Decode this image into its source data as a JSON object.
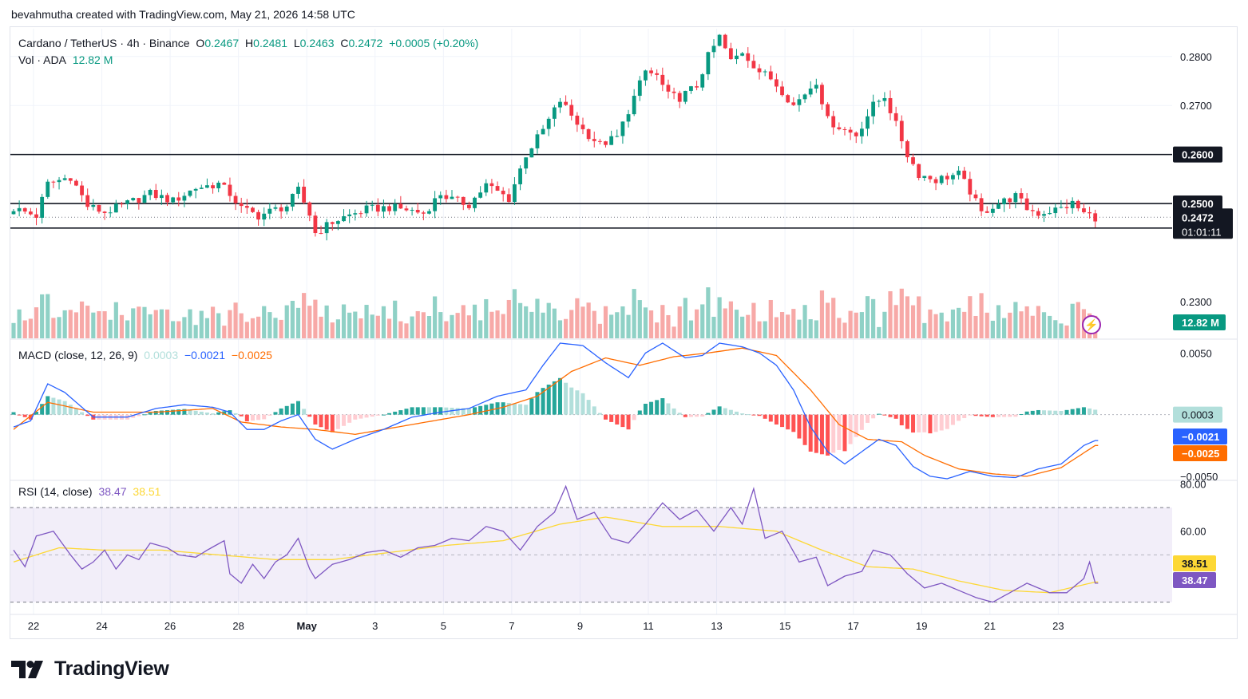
{
  "caption": "bevahmutha created with TradingView.com, May 21, 2026 14:58 UTC",
  "header": {
    "symbol": "Cardano / TetherUS · 4h · Binance",
    "o_label": "O",
    "o_value": "0.2467",
    "h_label": "H",
    "h_value": "0.2481",
    "l_label": "L",
    "l_value": "0.2463",
    "c_label": "C",
    "c_value": "0.2472",
    "change": "+0.0005 (+0.20%)"
  },
  "volume_legend": {
    "label": "Vol · ADA",
    "value": "12.82 M"
  },
  "macd_legend": {
    "label": "MACD (close, 12, 26, 9)",
    "hist": "0.0003",
    "macd": "−0.0021",
    "signal": "−0.0025"
  },
  "rsi_legend": {
    "label": "RSI (14, close)",
    "rsi": "38.47",
    "ma": "38.51"
  },
  "brand": {
    "name": "TradingView",
    "icon": "tradingview-logo-icon"
  },
  "colors": {
    "up": "#089981",
    "down": "#f23645",
    "vol_up": "#8fd1c6",
    "vol_down": "#f7a9a7",
    "macd": "#2962ff",
    "signal": "#ff6d00",
    "rsi": "#7e57c2",
    "rsi_ma": "#fdd835"
  },
  "chart_data": [
    {
      "type": "candlestick",
      "title": "Cardano / TetherUS · 4h · Binance",
      "price_ticks": [
        "0.2800",
        "0.2700",
        "0.2300"
      ],
      "price_range": [
        0.2378,
        0.2855
      ],
      "horizontal_levels": [
        "0.2600",
        "0.2500",
        "0.2450"
      ],
      "last_price_label": "0.2472",
      "countdown": "01:01:11",
      "volume_label": "12.82 M",
      "x_ticks": [
        "22",
        "24",
        "26",
        "28",
        "May",
        "3",
        "5",
        "7",
        "9",
        "11",
        "13",
        "15",
        "17",
        "19",
        "21",
        "23"
      ],
      "close_path": [
        [
          0,
          0.249
        ],
        [
          4,
          0.2475
        ],
        [
          6,
          0.254
        ],
        [
          10,
          0.2555
        ],
        [
          13,
          0.2495
        ],
        [
          16,
          0.2482
        ],
        [
          20,
          0.25
        ],
        [
          24,
          0.252
        ],
        [
          28,
          0.2505
        ],
        [
          32,
          0.2532
        ],
        [
          36,
          0.254
        ],
        [
          38,
          0.252
        ],
        [
          40,
          0.249
        ],
        [
          43,
          0.2475
        ],
        [
          46,
          0.2488
        ],
        [
          48,
          0.2495
        ],
        [
          50,
          0.2527
        ],
        [
          52,
          0.2478
        ],
        [
          53,
          0.244
        ],
        [
          56,
          0.2462
        ],
        [
          58,
          0.2472
        ],
        [
          62,
          0.2488
        ],
        [
          66,
          0.2492
        ],
        [
          69,
          0.2488
        ],
        [
          72,
          0.248
        ],
        [
          75,
          0.252
        ],
        [
          77,
          0.2508
        ],
        [
          80,
          0.2498
        ],
        [
          83,
          0.2538
        ],
        [
          87,
          0.251
        ],
        [
          90,
          0.26
        ],
        [
          93,
          0.265
        ],
        [
          96,
          0.271
        ],
        [
          98,
          0.268
        ],
        [
          100,
          0.265
        ],
        [
          103,
          0.262
        ],
        [
          106,
          0.2635
        ],
        [
          108,
          0.269
        ],
        [
          111,
          0.277
        ],
        [
          113,
          0.276
        ],
        [
          115,
          0.272
        ],
        [
          117,
          0.2716
        ],
        [
          120,
          0.274
        ],
        [
          122,
          0.28
        ],
        [
          124,
          0.284
        ],
        [
          126,
          0.279
        ],
        [
          128,
          0.281
        ],
        [
          131,
          0.277
        ],
        [
          133,
          0.2755
        ],
        [
          135,
          0.273
        ],
        [
          137,
          0.27
        ],
        [
          139,
          0.2725
        ],
        [
          141,
          0.275
        ],
        [
          143,
          0.267
        ],
        [
          146,
          0.265
        ],
        [
          148,
          0.264
        ],
        [
          151,
          0.27
        ],
        [
          153,
          0.272
        ],
        [
          155,
          0.266
        ],
        [
          157,
          0.26
        ],
        [
          159,
          0.256
        ],
        [
          162,
          0.2548
        ],
        [
          164,
          0.2555
        ],
        [
          166,
          0.256
        ],
        [
          168,
          0.2525
        ],
        [
          170,
          0.248
        ],
        [
          172,
          0.2495
        ],
        [
          174,
          0.2505
        ],
        [
          176,
          0.2515
        ],
        [
          178,
          0.249
        ],
        [
          180,
          0.248
        ],
        [
          182,
          0.2485
        ],
        [
          184,
          0.249
        ],
        [
          186,
          0.25
        ],
        [
          188,
          0.248
        ],
        [
          190,
          0.2472
        ]
      ]
    },
    {
      "type": "line",
      "title": "MACD (close, 12, 26, 9)",
      "y_ticks": [
        "0.0050",
        "−0.0050"
      ],
      "y_range": [
        -0.0052,
        0.0058
      ],
      "zero_label": "0.0003",
      "series": [
        {
          "name": "MACD",
          "values": [
            [
              0,
              -0.001
            ],
            [
              3,
              -0.0005
            ],
            [
              6,
              0.0025
            ],
            [
              9,
              0.0018
            ],
            [
              14,
              -0.0002
            ],
            [
              20,
              -0.0002
            ],
            [
              25,
              0.0005
            ],
            [
              30,
              0.0008
            ],
            [
              35,
              0.0006
            ],
            [
              38,
              0.0002
            ],
            [
              41,
              -0.0012
            ],
            [
              44,
              -0.0012
            ],
            [
              47,
              -0.0005
            ],
            [
              50,
              0.0
            ],
            [
              53,
              -0.002
            ],
            [
              56,
              -0.0028
            ],
            [
              60,
              -0.002
            ],
            [
              65,
              -0.0012
            ],
            [
              70,
              -0.0002
            ],
            [
              75,
              0.0002
            ],
            [
              80,
              0.0005
            ],
            [
              85,
              0.0015
            ],
            [
              90,
              0.002
            ],
            [
              93,
              0.004
            ],
            [
              96,
              0.0058
            ],
            [
              100,
              0.0056
            ],
            [
              104,
              0.0042
            ],
            [
              108,
              0.003
            ],
            [
              111,
              0.005
            ],
            [
              114,
              0.0058
            ],
            [
              118,
              0.0046
            ],
            [
              121,
              0.0048
            ],
            [
              124,
              0.0058
            ],
            [
              128,
              0.0055
            ],
            [
              131,
              0.005
            ],
            [
              134,
              0.004
            ],
            [
              137,
              0.002
            ],
            [
              140,
              -0.001
            ],
            [
              143,
              -0.003
            ],
            [
              146,
              -0.004
            ],
            [
              149,
              -0.003
            ],
            [
              152,
              -0.002
            ],
            [
              155,
              -0.0025
            ],
            [
              158,
              -0.0042
            ],
            [
              161,
              -0.005
            ],
            [
              164,
              -0.0052
            ],
            [
              168,
              -0.0046
            ],
            [
              172,
              -0.005
            ],
            [
              176,
              -0.0051
            ],
            [
              180,
              -0.0044
            ],
            [
              184,
              -0.004
            ],
            [
              188,
              -0.0025
            ],
            [
              190,
              -0.0021
            ]
          ]
        },
        {
          "name": "Signal",
          "values": [
            [
              0,
              -0.0012
            ],
            [
              6,
              0.001
            ],
            [
              14,
              0.0002
            ],
            [
              25,
              0.0002
            ],
            [
              35,
              0.0005
            ],
            [
              40,
              -0.0006
            ],
            [
              47,
              -0.001
            ],
            [
              53,
              -0.0012
            ],
            [
              60,
              -0.0016
            ],
            [
              70,
              -0.0008
            ],
            [
              80,
              0.0
            ],
            [
              86,
              0.0006
            ],
            [
              92,
              0.0015
            ],
            [
              98,
              0.0035
            ],
            [
              104,
              0.0046
            ],
            [
              110,
              0.004
            ],
            [
              116,
              0.0047
            ],
            [
              122,
              0.005
            ],
            [
              128,
              0.0054
            ],
            [
              134,
              0.0048
            ],
            [
              140,
              0.002
            ],
            [
              145,
              -0.0008
            ],
            [
              150,
              -0.002
            ],
            [
              156,
              -0.0022
            ],
            [
              160,
              -0.0033
            ],
            [
              166,
              -0.0044
            ],
            [
              172,
              -0.0048
            ],
            [
              178,
              -0.005
            ],
            [
              184,
              -0.0043
            ],
            [
              190,
              -0.0025
            ]
          ]
        }
      ]
    },
    {
      "type": "line",
      "title": "RSI (14, close)",
      "y_ticks": [
        "80.00",
        "60.00"
      ],
      "y_range": [
        26.5,
        80.5
      ],
      "bands": [
        70,
        50,
        30
      ],
      "series": [
        {
          "name": "RSI",
          "values": [
            [
              0,
              52
            ],
            [
              2,
              45
            ],
            [
              4,
              58
            ],
            [
              7,
              60
            ],
            [
              10,
              50
            ],
            [
              12,
              44
            ],
            [
              14,
              47
            ],
            [
              16,
              52
            ],
            [
              18,
              44
            ],
            [
              20,
              50
            ],
            [
              22,
              48
            ],
            [
              24,
              55
            ],
            [
              27,
              53
            ],
            [
              29,
              50
            ],
            [
              32,
              49
            ],
            [
              34,
              52
            ],
            [
              37,
              56
            ],
            [
              38,
              42
            ],
            [
              40,
              38
            ],
            [
              42,
              46
            ],
            [
              44,
              40
            ],
            [
              46,
              47
            ],
            [
              48,
              50
            ],
            [
              50,
              57
            ],
            [
              52,
              44
            ],
            [
              53,
              40
            ],
            [
              56,
              46
            ],
            [
              59,
              48
            ],
            [
              62,
              51
            ],
            [
              65,
              52
            ],
            [
              68,
              49
            ],
            [
              71,
              53
            ],
            [
              74,
              54
            ],
            [
              77,
              57
            ],
            [
              80,
              56
            ],
            [
              83,
              62
            ],
            [
              86,
              60
            ],
            [
              89,
              52
            ],
            [
              92,
              62
            ],
            [
              95,
              68
            ],
            [
              97,
              79
            ],
            [
              99,
              65
            ],
            [
              102,
              68
            ],
            [
              105,
              57
            ],
            [
              108,
              55
            ],
            [
              111,
              63
            ],
            [
              114,
              72
            ],
            [
              117,
              65
            ],
            [
              120,
              69
            ],
            [
              123,
              60
            ],
            [
              126,
              70
            ],
            [
              128,
              63
            ],
            [
              130,
              78
            ],
            [
              132,
              57
            ],
            [
              135,
              60
            ],
            [
              138,
              47
            ],
            [
              141,
              49
            ],
            [
              143,
              37
            ],
            [
              146,
              41
            ],
            [
              149,
              43
            ],
            [
              151,
              52
            ],
            [
              154,
              50
            ],
            [
              157,
              42
            ],
            [
              160,
              36
            ],
            [
              163,
              38
            ],
            [
              166,
              35
            ],
            [
              169,
              32
            ],
            [
              172,
              30
            ],
            [
              175,
              34
            ],
            [
              178,
              38
            ],
            [
              182,
              34
            ],
            [
              185,
              34
            ],
            [
              188,
              40
            ],
            [
              189,
              47
            ],
            [
              190,
              38
            ]
          ]
        },
        {
          "name": "RSI MA",
          "values": [
            [
              0,
              47
            ],
            [
              8,
              53
            ],
            [
              16,
              52
            ],
            [
              26,
              52
            ],
            [
              36,
              50
            ],
            [
              46,
              48
            ],
            [
              56,
              48
            ],
            [
              66,
              51
            ],
            [
              76,
              54
            ],
            [
              86,
              56
            ],
            [
              96,
              63
            ],
            [
              104,
              66
            ],
            [
              114,
              62
            ],
            [
              124,
              62
            ],
            [
              134,
              60
            ],
            [
              142,
              52
            ],
            [
              150,
              45
            ],
            [
              158,
              44
            ],
            [
              166,
              39
            ],
            [
              174,
              35
            ],
            [
              182,
              34
            ],
            [
              190,
              38.5
            ]
          ]
        }
      ]
    }
  ]
}
